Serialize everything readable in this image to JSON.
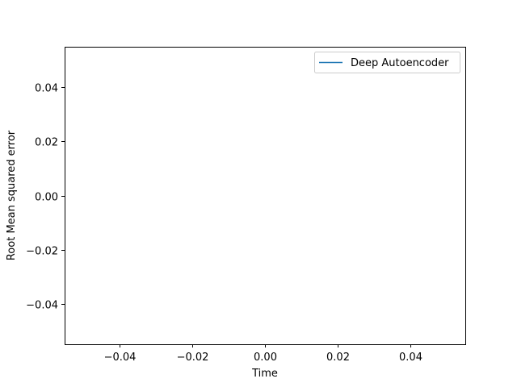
{
  "chart_data": {
    "type": "line",
    "title": "",
    "xlabel": "Time",
    "ylabel": "Root Mean squared error",
    "xlim": [
      -0.055,
      0.055
    ],
    "ylim": [
      -0.055,
      0.055
    ],
    "xticks": [
      -0.04,
      -0.02,
      0.0,
      0.02,
      0.04
    ],
    "xtick_labels": [
      "−0.04",
      "−0.02",
      "0.00",
      "0.02",
      "0.04"
    ],
    "yticks": [
      -0.04,
      -0.02,
      0.0,
      0.02,
      0.04
    ],
    "ytick_labels": [
      "−0.04",
      "−0.02",
      "0.00",
      "0.02",
      "0.04"
    ],
    "grid": false,
    "legend_position": "top-right",
    "series": [
      {
        "name": "Deep Autoencoder",
        "color": "#1f77b4",
        "x": [],
        "y": []
      }
    ]
  }
}
